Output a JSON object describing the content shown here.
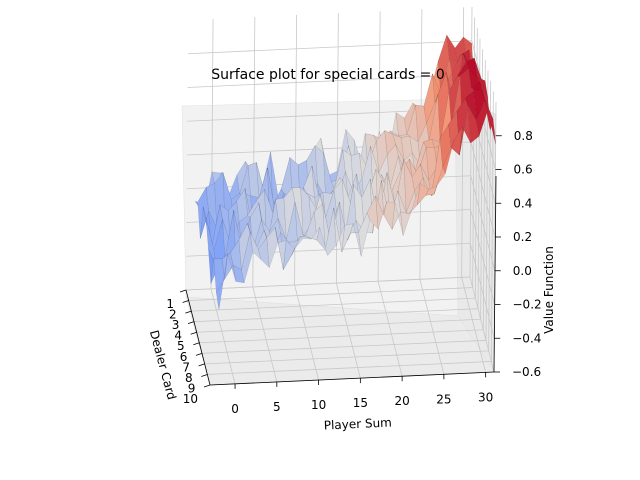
{
  "chart_data": {
    "type": "surface3d",
    "title": "Surface plot for special cards = 0",
    "xlabel": "Player Sum",
    "ylabel": "Dealer Card",
    "zlabel": "Value Function",
    "x_ticks": [
      "0",
      "5",
      "10",
      "15",
      "20",
      "25",
      "30"
    ],
    "y_ticks": [
      "1",
      "2",
      "3",
      "4",
      "5",
      "6",
      "7",
      "8",
      "9",
      "10"
    ],
    "z_ticks": [
      "−0.6",
      "−0.4",
      "−0.2",
      "0.0",
      "0.2",
      "0.4",
      "0.6",
      "0.8"
    ],
    "xlim": [
      -3,
      31
    ],
    "ylim": [
      1,
      10
    ],
    "zlim": [
      -0.6,
      1.0
    ],
    "colormap": "coolwarm",
    "grid": true,
    "player_sum_range": [
      -2,
      31
    ],
    "dealer_card_range": [
      1,
      10
    ],
    "value_profile_by_player_sum": [
      [
        -2,
        -0.05
      ],
      [
        0,
        0.02
      ],
      [
        2,
        0.05
      ],
      [
        4,
        0.08
      ],
      [
        6,
        0.1
      ],
      [
        8,
        0.13
      ],
      [
        10,
        0.15
      ],
      [
        12,
        0.18
      ],
      [
        14,
        0.2
      ],
      [
        16,
        0.22
      ],
      [
        18,
        0.25
      ],
      [
        20,
        0.3
      ],
      [
        22,
        0.35
      ],
      [
        24,
        0.42
      ],
      [
        26,
        0.6
      ],
      [
        28,
        0.75
      ],
      [
        30,
        0.85
      ],
      [
        31,
        0.75
      ]
    ],
    "value_range": [
      -0.45,
      0.95
    ]
  }
}
